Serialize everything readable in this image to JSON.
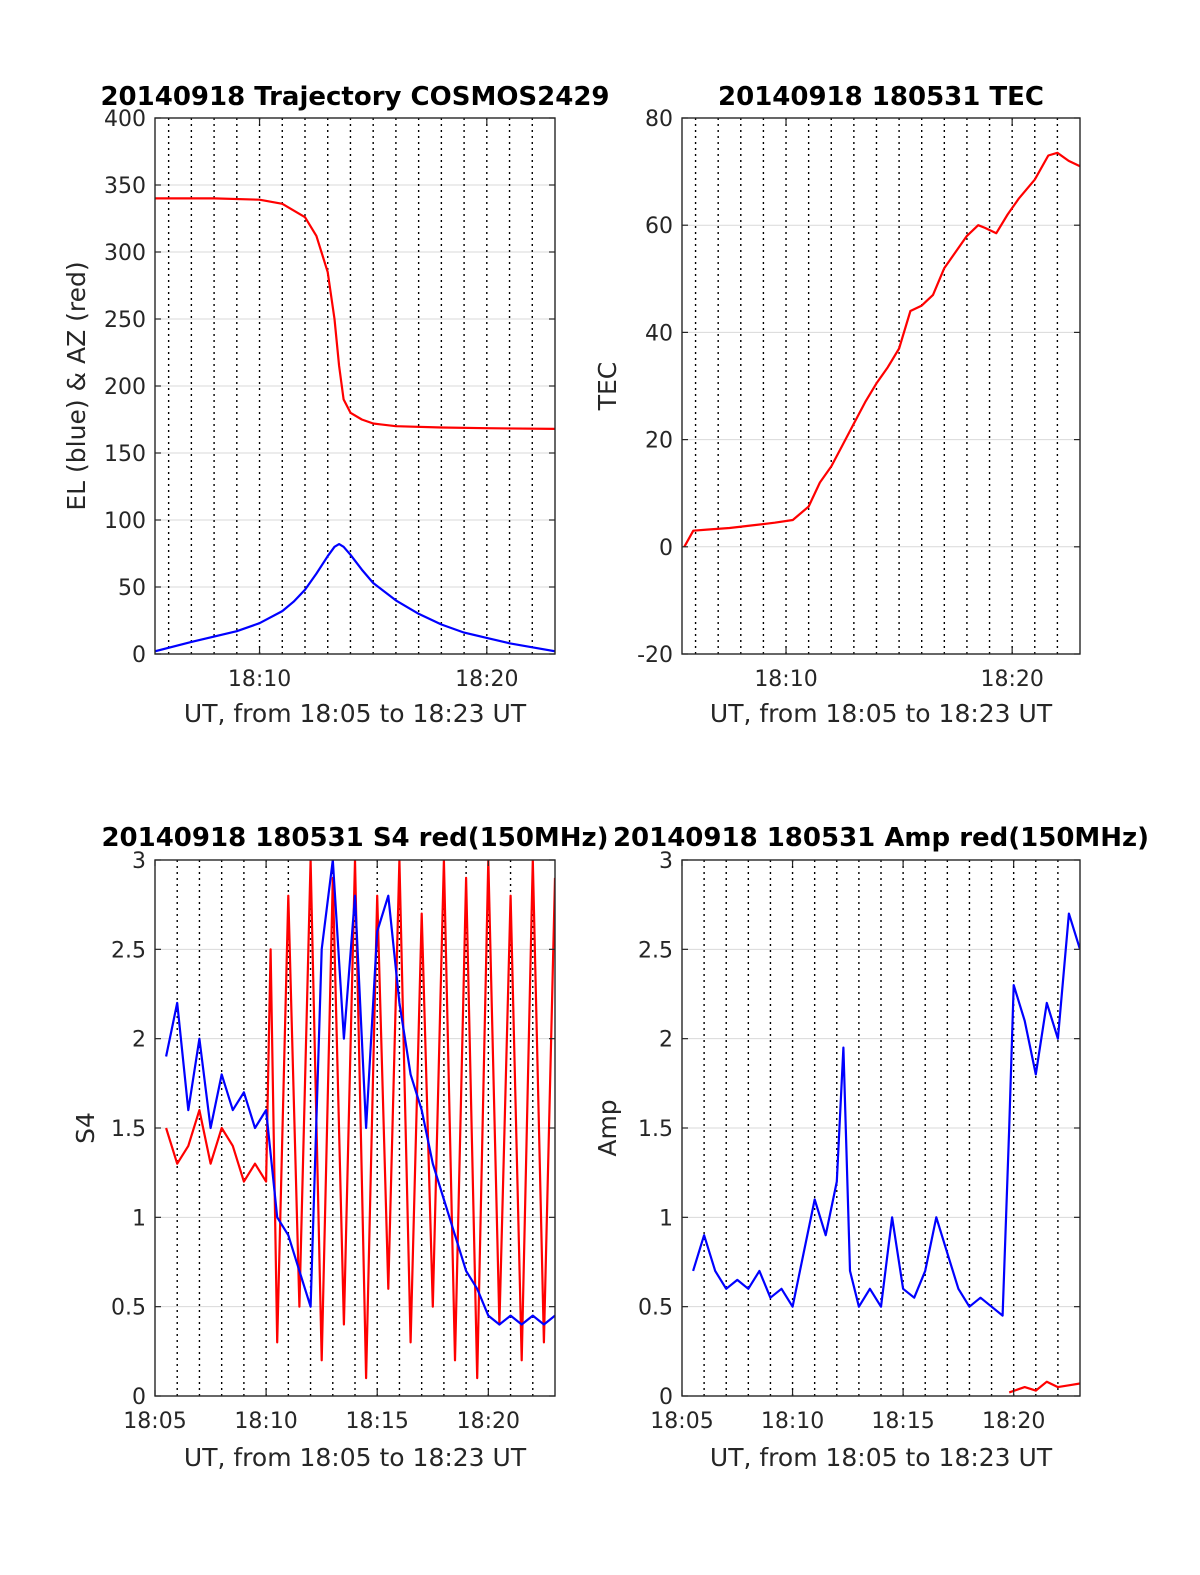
{
  "colors": {
    "red": "#ff0000",
    "blue": "#0000ff",
    "grid": "#d9d9d9",
    "axis": "#262626"
  },
  "chart_data": [
    {
      "id": "trajectory",
      "type": "line",
      "title": "20140918 Trajectory COSMOS2429",
      "xlabel": "UT, from 18:05 to 18:23 UT",
      "ylabel": "EL (blue) & AZ (red)",
      "xlim": [
        5.4,
        23.0
      ],
      "ylim": [
        0,
        400
      ],
      "yticks": [
        0,
        50,
        100,
        150,
        200,
        250,
        300,
        350,
        400
      ],
      "ytick_labels": [
        "0",
        "50",
        "100",
        "150",
        "200",
        "250",
        "300",
        "350",
        "400"
      ],
      "xticks": [
        10,
        20
      ],
      "xtick_labels": [
        "18:10",
        "18:20"
      ],
      "grid": true,
      "minute_dotted_lines": [
        6,
        7,
        8,
        9,
        10,
        11,
        12,
        13,
        14,
        15,
        16,
        17,
        18,
        19,
        20,
        21,
        22
      ],
      "series": [
        {
          "name": "AZ",
          "color": "red",
          "x": [
            5.4,
            8,
            10,
            11,
            12,
            12.5,
            13,
            13.3,
            13.5,
            13.7,
            14,
            14.5,
            15,
            16,
            18,
            20,
            23
          ],
          "y": [
            340,
            340,
            339,
            336,
            326,
            312,
            285,
            250,
            215,
            190,
            180,
            175,
            172,
            170,
            169,
            168.5,
            168
          ]
        },
        {
          "name": "EL",
          "color": "blue",
          "x": [
            5.4,
            7,
            9,
            10,
            11,
            11.5,
            12,
            12.5,
            13,
            13.3,
            13.5,
            13.7,
            14,
            14.5,
            15,
            16,
            17,
            18,
            19,
            20,
            21,
            22,
            23
          ],
          "y": [
            2,
            9,
            17,
            23,
            32,
            39,
            48,
            60,
            73,
            80,
            82,
            80,
            74,
            63,
            53,
            40,
            30,
            22,
            16,
            12,
            8,
            5,
            2
          ]
        }
      ]
    },
    {
      "id": "tec",
      "type": "line",
      "title": "20140918 180531 TEC",
      "xlabel": "UT, from 18:05 to 18:23 UT",
      "ylabel": "TEC",
      "xlim": [
        5.4,
        23.0
      ],
      "ylim": [
        -20,
        80
      ],
      "yticks": [
        -20,
        0,
        20,
        40,
        60,
        80
      ],
      "ytick_labels": [
        "-20",
        "0",
        "20",
        "40",
        "60",
        "80"
      ],
      "xticks": [
        10,
        20
      ],
      "xtick_labels": [
        "18:10",
        "18:20"
      ],
      "grid": true,
      "minute_dotted_lines": [
        6,
        7,
        8,
        9,
        10,
        11,
        12,
        13,
        14,
        15,
        16,
        17,
        18,
        19,
        20,
        21,
        22
      ],
      "series": [
        {
          "name": "TEC",
          "color": "red",
          "x": [
            5.5,
            5.9,
            6.5,
            7.5,
            8.5,
            9.5,
            10.3,
            11,
            11.5,
            12,
            12.5,
            13,
            13.5,
            14,
            14.5,
            15,
            15.5,
            16,
            16.5,
            17,
            17.5,
            18,
            18.5,
            18.8,
            19.3,
            19.8,
            20.3,
            21,
            21.6,
            22,
            22.5,
            23
          ],
          "y": [
            0,
            3,
            3.2,
            3.5,
            4,
            4.5,
            5,
            7.5,
            12,
            15,
            19,
            23,
            27,
            30.5,
            33.5,
            37,
            44,
            45,
            47,
            52,
            55,
            58,
            60,
            59.5,
            58.5,
            62,
            65,
            68.5,
            73,
            73.5,
            72,
            71
          ]
        }
      ]
    },
    {
      "id": "s4",
      "type": "line",
      "title": "20140918 180531 S4 red(150MHz)",
      "xlabel": "UT, from 18:05 to 18:23 UT",
      "ylabel": "S4",
      "xlim": [
        5.0,
        23.0
      ],
      "ylim": [
        0,
        3
      ],
      "yticks": [
        0,
        0.5,
        1,
        1.5,
        2,
        2.5,
        3
      ],
      "ytick_labels": [
        "0",
        "0.5",
        "1",
        "1.5",
        "2",
        "2.5",
        "3"
      ],
      "xticks": [
        5,
        10,
        15,
        20
      ],
      "xtick_labels": [
        "18:05",
        "18:10",
        "18:15",
        "18:20"
      ],
      "grid": true,
      "minute_dotted_lines": [
        6,
        7,
        8,
        9,
        10,
        11,
        12,
        13,
        14,
        15,
        16,
        17,
        18,
        19,
        20,
        21,
        22
      ],
      "series": [
        {
          "name": "red",
          "color": "red",
          "x": [
            5.5,
            6,
            6.5,
            7,
            7.5,
            8,
            8.5,
            9,
            9.5,
            10,
            10.2,
            10.5,
            11,
            11.5,
            12,
            12.5,
            13,
            13.5,
            14,
            14.5,
            15,
            15.5,
            16,
            16.5,
            17,
            17.5,
            18,
            18.5,
            19,
            19.5,
            20,
            20.5,
            21,
            21.5,
            22,
            22.5,
            23
          ],
          "y": [
            1.5,
            1.3,
            1.4,
            1.6,
            1.3,
            1.5,
            1.4,
            1.2,
            1.3,
            1.2,
            2.5,
            0.3,
            2.8,
            0.5,
            3,
            0.2,
            2.9,
            0.4,
            3,
            0.1,
            2.8,
            0.6,
            3,
            0.3,
            2.7,
            0.5,
            3,
            0.2,
            2.9,
            0.1,
            3,
            0.4,
            2.8,
            0.2,
            3,
            0.3,
            2.9
          ]
        },
        {
          "name": "blue",
          "color": "blue",
          "x": [
            5.5,
            6,
            6.5,
            7,
            7.5,
            8,
            8.5,
            9,
            9.5,
            10,
            10.5,
            11,
            11.5,
            12,
            12.5,
            13,
            13.5,
            14,
            14.5,
            15,
            15.5,
            16,
            16.5,
            17,
            17.5,
            18,
            18.5,
            19,
            19.5,
            20,
            20.5,
            21,
            21.5,
            22,
            22.5,
            23
          ],
          "y": [
            1.9,
            2.2,
            1.6,
            2,
            1.5,
            1.8,
            1.6,
            1.7,
            1.5,
            1.6,
            1,
            0.9,
            0.7,
            0.5,
            2.5,
            3,
            2,
            2.8,
            1.5,
            2.6,
            2.8,
            2.2,
            1.8,
            1.6,
            1.3,
            1.1,
            0.9,
            0.7,
            0.6,
            0.45,
            0.4,
            0.45,
            0.4,
            0.45,
            0.4,
            0.45
          ]
        }
      ]
    },
    {
      "id": "amp",
      "type": "line",
      "title": "20140918 180531 Amp red(150MHz)",
      "xlabel": "UT, from 18:05 to 18:23 UT",
      "ylabel": "Amp",
      "xlim": [
        5.0,
        23.0
      ],
      "ylim": [
        0,
        3
      ],
      "yticks": [
        0,
        0.5,
        1,
        1.5,
        2,
        2.5,
        3
      ],
      "ytick_labels": [
        "0",
        "0.5",
        "1",
        "1.5",
        "2",
        "2.5",
        "3"
      ],
      "xticks": [
        5,
        10,
        15,
        20
      ],
      "xtick_labels": [
        "18:05",
        "18:10",
        "18:15",
        "18:20"
      ],
      "grid": true,
      "minute_dotted_lines": [
        6,
        7,
        8,
        9,
        10,
        11,
        12,
        13,
        14,
        15,
        16,
        17,
        18,
        19,
        20,
        21,
        22
      ],
      "series": [
        {
          "name": "blue",
          "color": "blue",
          "x": [
            5.5,
            6,
            6.5,
            7,
            7.5,
            8,
            8.5,
            9,
            9.5,
            10,
            10.5,
            11,
            11.5,
            12,
            12.3,
            12.6,
            13,
            13.5,
            14,
            14.5,
            15,
            15.5,
            16,
            16.5,
            17,
            17.5,
            18,
            18.5,
            19,
            19.5,
            19.8,
            20,
            20.5,
            21,
            21.5,
            22,
            22.5,
            23
          ],
          "y": [
            0.7,
            0.9,
            0.7,
            0.6,
            0.65,
            0.6,
            0.7,
            0.55,
            0.6,
            0.5,
            0.8,
            1.1,
            0.9,
            1.2,
            1.95,
            0.7,
            0.5,
            0.6,
            0.5,
            1,
            0.6,
            0.55,
            0.7,
            1,
            0.8,
            0.6,
            0.5,
            0.55,
            0.5,
            0.45,
            1.5,
            2.3,
            2.1,
            1.8,
            2.2,
            2,
            2.7,
            2.5
          ]
        },
        {
          "name": "red",
          "color": "red",
          "x": [
            19.8,
            20.5,
            21,
            21.5,
            22,
            22.5,
            23
          ],
          "y": [
            0.02,
            0.05,
            0.03,
            0.08,
            0.05,
            0.06,
            0.07
          ]
        }
      ]
    }
  ]
}
